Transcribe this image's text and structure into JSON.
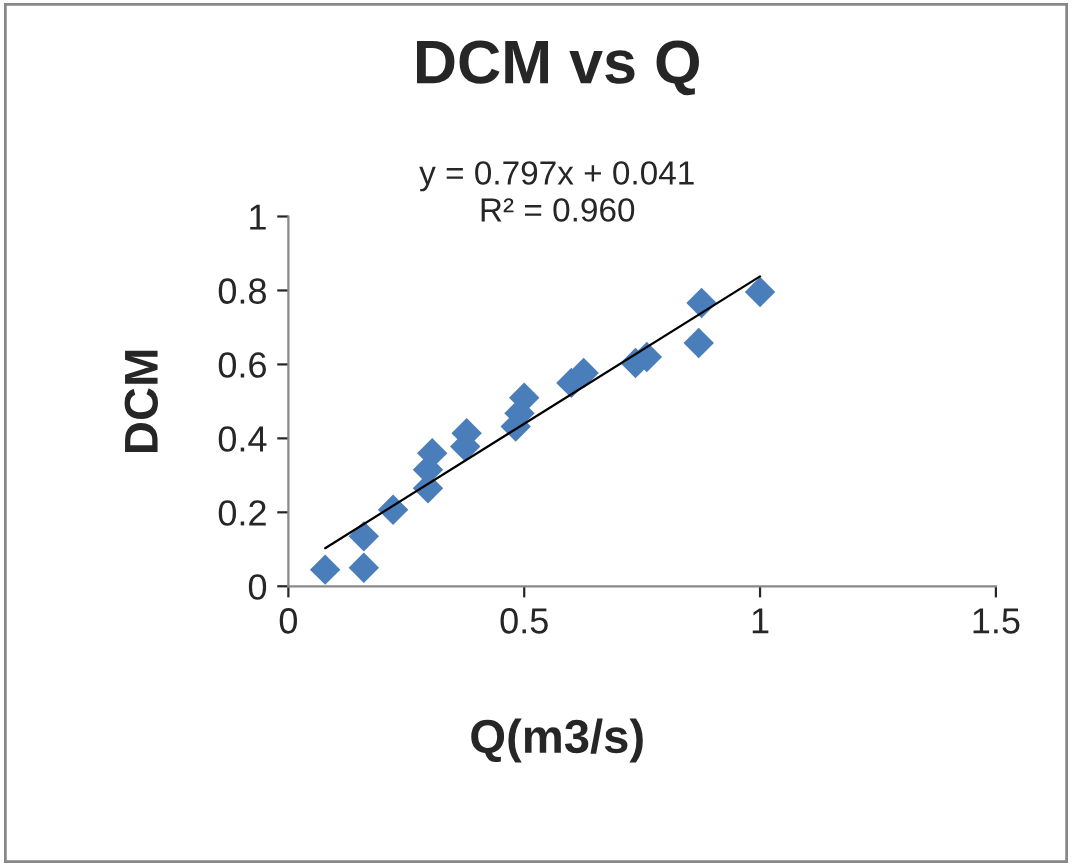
{
  "chart_data": {
    "type": "scatter",
    "title": "DCM vs Q",
    "xlabel": "Q(m3/s)",
    "ylabel": "DCM",
    "annotations": [
      "y = 0.797x + 0.041",
      "R² = 0.960"
    ],
    "xlim": [
      0,
      1.5
    ],
    "xticks": [
      0,
      0.5,
      1,
      1.5
    ],
    "ylim": [
      0,
      1
    ],
    "yticks": [
      0,
      0.2,
      0.4,
      0.6,
      0.8,
      1
    ],
    "grid": false,
    "legend": false,
    "series": [
      {
        "marker": "diamond",
        "color": "#4a7ebb",
        "x": [
          0.078,
          0.16,
          0.16,
          0.222,
          0.296,
          0.296,
          0.305,
          0.375,
          0.378,
          0.482,
          0.49,
          0.5,
          0.6,
          0.626,
          0.736,
          0.76,
          0.87,
          0.876,
          1.0
        ],
        "values": [
          0.045,
          0.05,
          0.135,
          0.207,
          0.265,
          0.315,
          0.36,
          0.378,
          0.414,
          0.432,
          0.468,
          0.51,
          0.55,
          0.577,
          0.604,
          0.62,
          0.658,
          0.766,
          0.796
        ]
      },
      {
        "type": "line",
        "color": "#000000",
        "line_style": "solid",
        "x": [
          0.078,
          1.0
        ],
        "values": [
          0.103,
          0.838
        ]
      }
    ]
  }
}
